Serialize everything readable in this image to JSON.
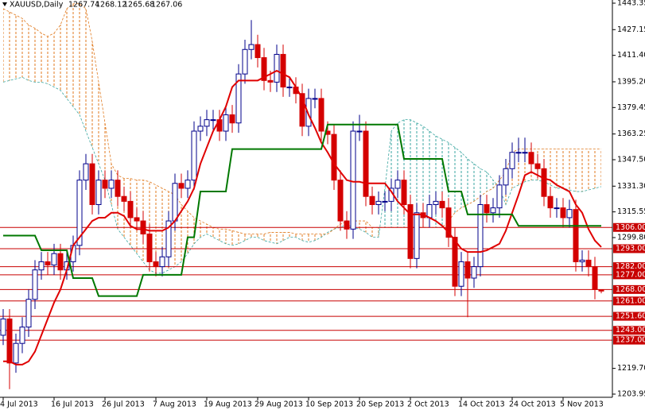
{
  "chart_data": {
    "type": "candlestick",
    "title": "XAUUSD,Daily",
    "categories": [
      "4 Jul 2013",
      null,
      null,
      null,
      null,
      null,
      null,
      null,
      "16 Jul 2013",
      null,
      null,
      null,
      null,
      null,
      null,
      null,
      "26 Jul 2013",
      null,
      null,
      null,
      null,
      null,
      null,
      null,
      "7 Aug 2013",
      null,
      null,
      null,
      null,
      null,
      null,
      null,
      "19 Aug 2013",
      null,
      null,
      null,
      null,
      null,
      null,
      null,
      "29 Aug 2013",
      null,
      null,
      null,
      null,
      null,
      null,
      null,
      "10 Sep 2013",
      null,
      null,
      null,
      null,
      null,
      null,
      null,
      "20 Sep 2013",
      null,
      null,
      null,
      null,
      null,
      null,
      null,
      "2 Oct 2013",
      null,
      null,
      null,
      null,
      null,
      null,
      null,
      "14 Oct 2013",
      null,
      null,
      null,
      null,
      null,
      null,
      null,
      "24 Oct 2013",
      null,
      null,
      null,
      null,
      null,
      null,
      null,
      "5 Nov 2013",
      null,
      null,
      null,
      null,
      null,
      null
    ],
    "open": [
      1240,
      1250,
      1223,
      1235,
      1245,
      1262,
      1280,
      1285,
      1283,
      1290,
      1280,
      1285,
      1295,
      1335,
      1345,
      1320,
      1335,
      1330,
      1335,
      1325,
      1322,
      1312,
      1310,
      1302,
      1285,
      1282,
      1288,
      1310,
      1333,
      1330,
      1335,
      1365,
      1368,
      1372,
      1372,
      1365,
      1375,
      1370,
      1400,
      1415,
      1418,
      1410,
      1396,
      1395,
      1412,
      1392,
      1392,
      1388,
      1368,
      1385,
      1385,
      1365,
      1363,
      1335,
      1310,
      1305,
      1365,
      1365,
      1325,
      1320,
      1322,
      1322,
      1330,
      1335,
      1320,
      1287,
      1315,
      1312,
      1320,
      1322,
      1318,
      1300,
      1270,
      1285,
      1275,
      1282,
      1320,
      1315,
      1318,
      1332,
      1342,
      1352,
      1352,
      1352,
      1345,
      1342,
      1325,
      1318,
      1318,
      1312,
      1317,
      1285,
      1286,
      1282,
      1267.74
    ],
    "high": [
      1256,
      1256,
      1241,
      1251,
      1268,
      1286,
      1291,
      1291,
      1296,
      1296,
      1291,
      1301,
      1341,
      1351,
      1351,
      1341,
      1341,
      1341,
      1341,
      1331,
      1328,
      1318,
      1316,
      1308,
      1291,
      1294,
      1316,
      1339,
      1339,
      1341,
      1371,
      1374,
      1378,
      1378,
      1378,
      1381,
      1381,
      1406,
      1421,
      1433,
      1424,
      1416,
      1402,
      1418,
      1418,
      1398,
      1398,
      1394,
      1391,
      1391,
      1391,
      1371,
      1369,
      1341,
      1316,
      1371,
      1375,
      1371,
      1331,
      1328,
      1328,
      1336,
      1341,
      1341,
      1326,
      1321,
      1321,
      1326,
      1328,
      1328,
      1324,
      1306,
      1291,
      1291,
      1288,
      1326,
      1326,
      1324,
      1338,
      1348,
      1358,
      1361,
      1361,
      1358,
      1351,
      1348,
      1331,
      1324,
      1324,
      1323,
      1323,
      1292,
      1292,
      1288,
      1268.12
    ],
    "low": [
      1234,
      1207,
      1217,
      1229,
      1239,
      1256,
      1274,
      1277,
      1277,
      1274,
      1274,
      1279,
      1289,
      1329,
      1314,
      1314,
      1324,
      1324,
      1319,
      1316,
      1306,
      1304,
      1296,
      1279,
      1276,
      1276,
      1282,
      1304,
      1324,
      1324,
      1329,
      1359,
      1362,
      1366,
      1359,
      1359,
      1364,
      1364,
      1394,
      1409,
      1404,
      1390,
      1389,
      1389,
      1386,
      1386,
      1382,
      1362,
      1362,
      1379,
      1359,
      1357,
      1329,
      1304,
      1299,
      1299,
      1359,
      1319,
      1314,
      1314,
      1316,
      1316,
      1324,
      1314,
      1281,
      1281,
      1306,
      1306,
      1314,
      1312,
      1294,
      1264,
      1264,
      1251,
      1269,
      1276,
      1309,
      1309,
      1312,
      1326,
      1336,
      1346,
      1346,
      1339,
      1336,
      1319,
      1312,
      1312,
      1306,
      1306,
      1279,
      1279,
      1276,
      1262,
      1265.68
    ],
    "close": [
      1250,
      1223,
      1235,
      1245,
      1262,
      1280,
      1285,
      1283,
      1290,
      1280,
      1285,
      1295,
      1335,
      1345,
      1320,
      1335,
      1330,
      1335,
      1325,
      1322,
      1312,
      1310,
      1302,
      1285,
      1282,
      1288,
      1310,
      1333,
      1330,
      1335,
      1365,
      1368,
      1372,
      1372,
      1365,
      1375,
      1370,
      1400,
      1415,
      1418,
      1410,
      1396,
      1395,
      1412,
      1392,
      1392,
      1388,
      1368,
      1385,
      1385,
      1365,
      1363,
      1335,
      1310,
      1305,
      1365,
      1365,
      1325,
      1320,
      1322,
      1322,
      1330,
      1335,
      1320,
      1287,
      1315,
      1312,
      1320,
      1322,
      1318,
      1300,
      1270,
      1285,
      1275,
      1282,
      1320,
      1315,
      1318,
      1332,
      1342,
      1352,
      1352,
      1352,
      1345,
      1342,
      1325,
      1318,
      1318,
      1312,
      1317,
      1285,
      1286,
      1282,
      1268,
      1267.06
    ],
    "up_color": "#00008b",
    "down_color": "#d40000",
    "lines": [
      {
        "color": "#e00000",
        "values": [
          1224,
          1224,
          1222,
          1222,
          1224,
          1230,
          1240,
          1250,
          1260,
          1268,
          1280,
          1295,
          1300,
          1305,
          1310,
          1312,
          1312,
          1315,
          1315,
          1313,
          1307,
          1305,
          1305,
          1304,
          1304,
          1304,
          1306,
          1310,
          1316,
          1322,
          1330,
          1345,
          1355,
          1365,
          1372,
          1380,
          1392,
          1396,
          1396,
          1396,
          1396,
          1398,
          1400,
          1402,
          1400,
          1398,
          1392,
          1385,
          1375,
          1367,
          1358,
          1352,
          1345,
          1340,
          1335,
          1334,
          1334,
          1333,
          1333,
          1333,
          1333,
          1328,
          1322,
          1318,
          1314,
          1314,
          1314,
          1312,
          1310,
          1307,
          1303,
          1298,
          1293,
          1291,
          1291,
          1291,
          1292,
          1294,
          1296,
          1304,
          1315,
          1326,
          1338,
          1340,
          1338,
          1336,
          1335,
          1332,
          1330,
          1328,
          1320,
          1315,
          1305,
          1298,
          1294
        ]
      },
      {
        "color": "#007800",
        "values": [
          1301,
          1301,
          1301,
          1301,
          1301,
          1301,
          1292,
          1292,
          1292,
          1292,
          1292,
          1275,
          1275,
          1275,
          1275,
          1264,
          1264,
          1264,
          1264,
          1264,
          1264,
          1264,
          1277,
          1277,
          1277,
          1277,
          1277,
          1277,
          1277,
          1300,
          1300,
          1328,
          1328,
          1328,
          1328,
          1328,
          1354,
          1354,
          1354,
          1354,
          1354,
          1354,
          1354,
          1354,
          1354,
          1354,
          1354,
          1354,
          1354,
          1354,
          1354,
          1369,
          1369,
          1369,
          1369,
          1369,
          1369,
          1369,
          1369,
          1369,
          1369,
          1369,
          1369,
          1348,
          1348,
          1348,
          1348,
          1348,
          1348,
          1348,
          1328,
          1328,
          1328,
          1314,
          1314,
          1314,
          1314,
          1314,
          1314,
          1314,
          1314,
          1307,
          1307,
          1307,
          1307,
          1307,
          1307,
          1307,
          1307,
          1307,
          1307,
          1307,
          1307,
          1307,
          1307
        ]
      }
    ],
    "cloud": {
      "up_color": "#3aa6a0",
      "down_color": "#e07a1f",
      "span_a": [
        1395,
        1396,
        1397,
        1398,
        1396,
        1395,
        1395,
        1394,
        1392,
        1390,
        1385,
        1380,
        1375,
        1365,
        1355,
        1345,
        1335,
        1320,
        1305,
        1300,
        1295,
        1290,
        1285,
        1280,
        1278,
        1278,
        1280,
        1282,
        1285,
        1290,
        1296,
        1300,
        1302,
        1300,
        1298,
        1296,
        1295,
        1296,
        1298,
        1300,
        1300,
        1298,
        1297,
        1296,
        1298,
        1300,
        1300,
        1298,
        1297,
        1298,
        1300,
        1303,
        1305,
        1306,
        1308,
        1306,
        1305,
        1303,
        1300,
        1300,
        1330,
        1365,
        1370,
        1372,
        1372,
        1370,
        1368,
        1365,
        1362,
        1360,
        1358,
        1355,
        1352,
        1348,
        1345,
        1342,
        1340,
        1335,
        1330,
        1320,
        1330,
        1332,
        1334,
        1335,
        1335,
        1334,
        1332,
        1330,
        1330,
        1329,
        1328,
        1328,
        1329,
        1330,
        1331
      ],
      "span_b": [
        1440,
        1438,
        1436,
        1434,
        1430,
        1428,
        1425,
        1423,
        1425,
        1430,
        1440,
        1443,
        1443,
        1440,
        1420,
        1395,
        1370,
        1345,
        1338,
        1336,
        1336,
        1335,
        1335,
        1334,
        1332,
        1330,
        1328,
        1326,
        1320,
        1316,
        1312,
        1310,
        1308,
        1306,
        1305,
        1305,
        1304,
        1303,
        1302,
        1302,
        1302,
        1302,
        1303,
        1303,
        1303,
        1303,
        1302,
        1302,
        1302,
        1302,
        1302,
        1302,
        1305,
        1308,
        1310,
        1310,
        1310,
        1310,
        1306,
        1306,
        1306,
        1306,
        1306,
        1306,
        1306,
        1306,
        1306,
        1306,
        1306,
        1306,
        1310,
        1315,
        1318,
        1320,
        1322,
        1325,
        1328,
        1330,
        1335,
        1340,
        1352,
        1354,
        1354,
        1354,
        1354,
        1354,
        1354,
        1354,
        1354,
        1354,
        1354,
        1354,
        1354,
        1354,
        1354
      ]
    },
    "levels": [
      {
        "value": 1306,
        "label": "1306.00"
      },
      {
        "value": 1293,
        "label": "1293.00"
      },
      {
        "value": 1282,
        "label": "1282.00"
      },
      {
        "value": 1277,
        "label": "1277.00"
      },
      {
        "value": 1268,
        "label": "1268.00"
      },
      {
        "value": 1261,
        "label": "1261.00"
      },
      {
        "value": 1251.6,
        "label": "1251.60"
      },
      {
        "value": 1243,
        "label": "1243.00"
      },
      {
        "value": 1237,
        "label": "1237.00"
      }
    ],
    "level_color": "#c80000",
    "ylim": [
      1202,
      1445.3
    ],
    "yticks": [
      {
        "value": 1443.35,
        "label": "1443.35"
      },
      {
        "value": 1427.15,
        "label": "1427.15"
      },
      {
        "value": 1411.4,
        "label": "1411.40"
      },
      {
        "value": 1395.2,
        "label": "1395.20"
      },
      {
        "value": 1379.45,
        "label": "1379.45"
      },
      {
        "value": 1363.25,
        "label": "1363.25"
      },
      {
        "value": 1347.5,
        "label": "1347.50"
      },
      {
        "value": 1331.3,
        "label": "1331.30"
      },
      {
        "value": 1315.55,
        "label": "1315.55"
      },
      {
        "value": 1299.8,
        "label": "1299.80"
      },
      {
        "value": 1219.7,
        "label": "1219.70"
      },
      {
        "value": 1203.95,
        "label": "1203.95"
      }
    ]
  }
}
